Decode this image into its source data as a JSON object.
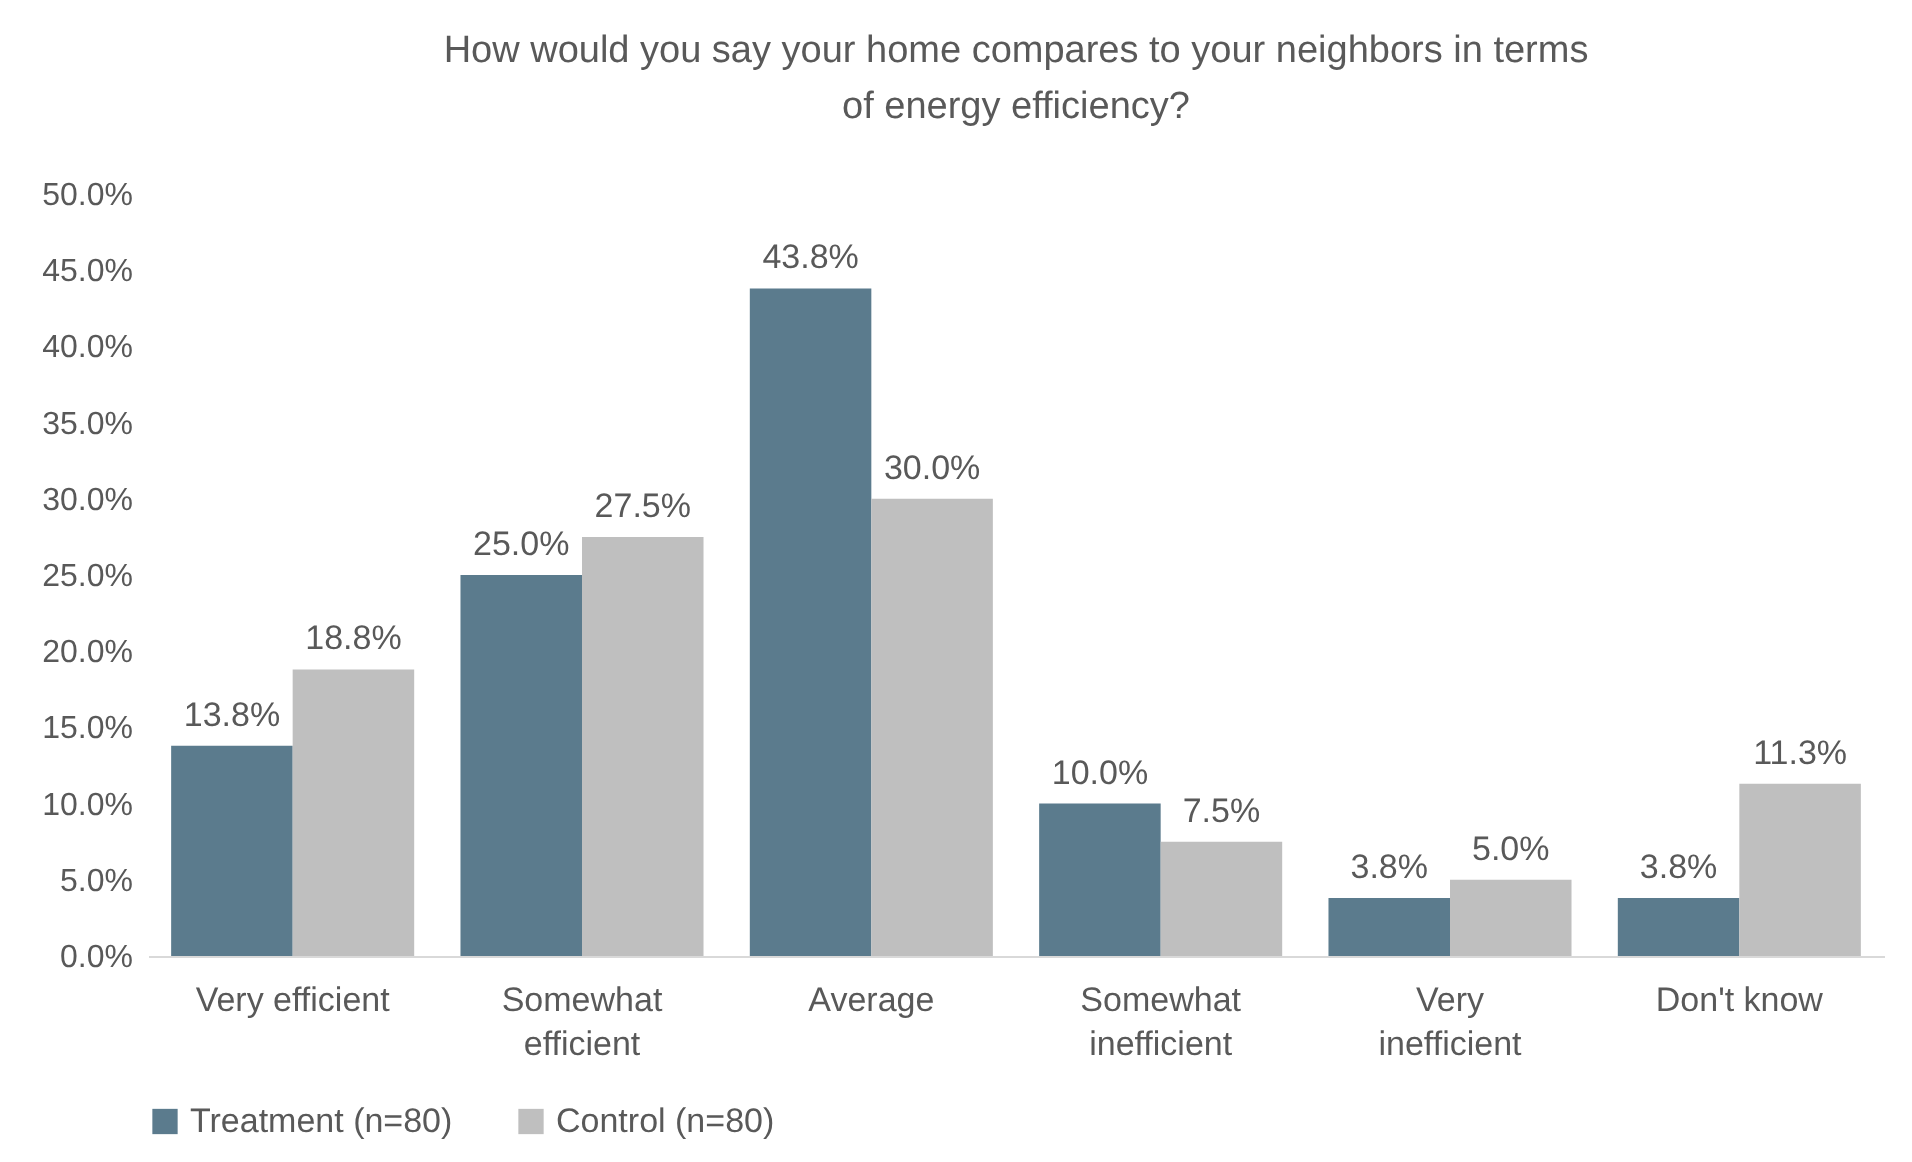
{
  "chart_data": {
    "type": "bar",
    "title": "How would you say your home compares to your neighbors in terms of energy efficiency?",
    "categories": [
      "Very efficient",
      "Somewhat efficient",
      "Average",
      "Somewhat inefficient",
      "Very inefficient",
      "Don't know"
    ],
    "series": [
      {
        "name": "Treatment (n=80)",
        "color": "#5b7b8d",
        "values": [
          13.8,
          25.0,
          43.8,
          10.0,
          3.8,
          3.8
        ],
        "value_labels": [
          "13.8%",
          "25.0%",
          "43.8%",
          "10.0%",
          "3.8%",
          "3.8%"
        ]
      },
      {
        "name": "Control (n=80)",
        "color": "#bfbfbf",
        "values": [
          18.8,
          27.5,
          30.0,
          7.5,
          5.0,
          11.3
        ],
        "value_labels": [
          "18.8%",
          "27.5%",
          "30.0%",
          "7.5%",
          "5.0%",
          "11.3%"
        ]
      }
    ],
    "ylim": [
      0,
      50
    ],
    "yticks": [
      {
        "value": 0,
        "label": "0.0%"
      },
      {
        "value": 5,
        "label": "5.0%"
      },
      {
        "value": 10,
        "label": "10.0%"
      },
      {
        "value": 15,
        "label": "15.0%"
      },
      {
        "value": 20,
        "label": "20.0%"
      },
      {
        "value": 25,
        "label": "25.0%"
      },
      {
        "value": 30,
        "label": "30.0%"
      },
      {
        "value": 35,
        "label": "35.0%"
      },
      {
        "value": 40,
        "label": "40.0%"
      },
      {
        "value": 45,
        "label": "45.0%"
      },
      {
        "value": 50,
        "label": "50.0%"
      }
    ],
    "grid": false,
    "legend": "bottom"
  }
}
